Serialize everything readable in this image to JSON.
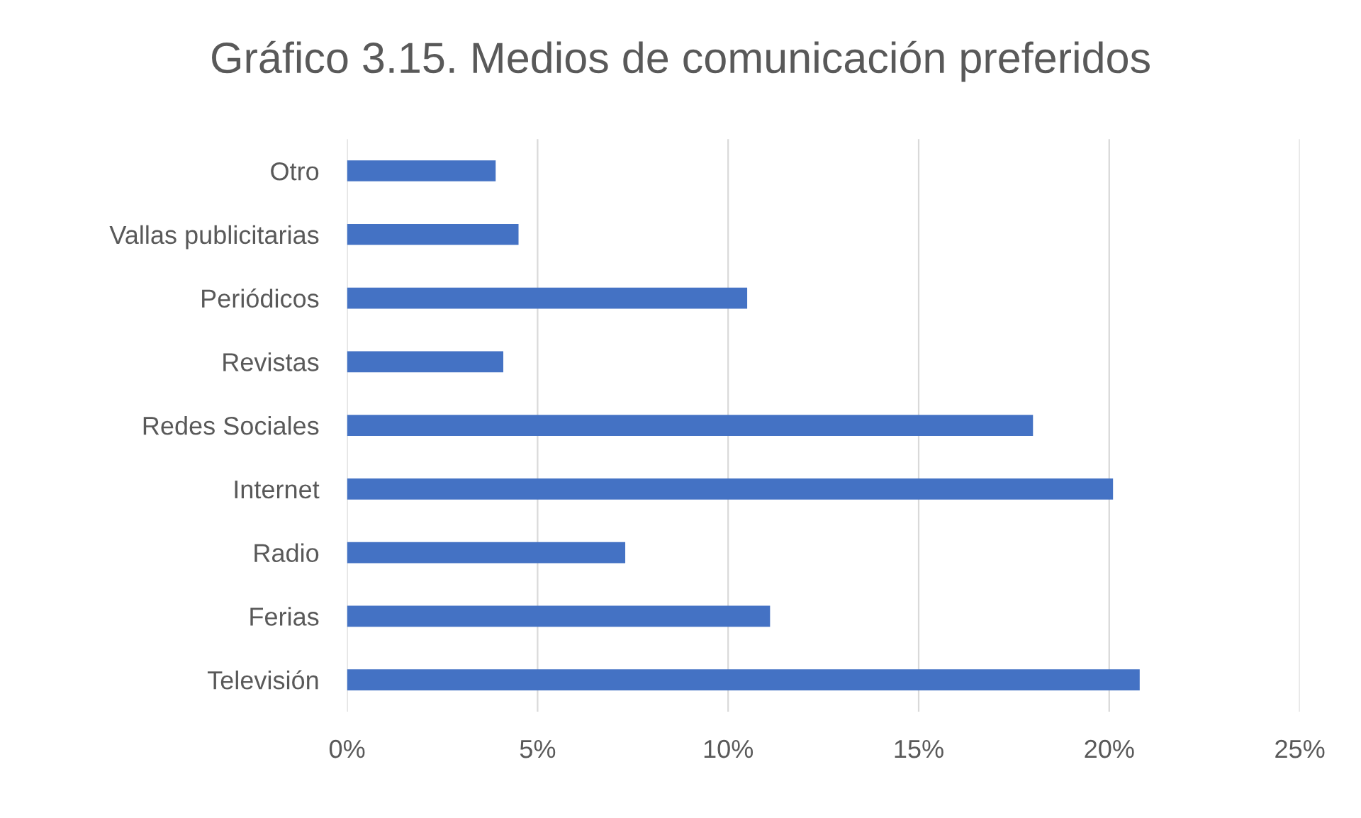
{
  "chart_data": {
    "type": "bar",
    "orientation": "horizontal",
    "title": "Gráfico 3.15. Medios de comunicación preferidos",
    "categories": [
      "Otro",
      "Vallas publicitarias",
      "Periódicos",
      "Revistas",
      "Redes Sociales",
      "Internet",
      "Radio",
      "Ferias",
      "Televisión"
    ],
    "values": [
      3.9,
      4.5,
      10.5,
      4.1,
      18.0,
      20.1,
      7.3,
      11.1,
      20.8
    ],
    "color": "#4472c4",
    "xlim": [
      0,
      25
    ],
    "xticks": [
      {
        "value": 0,
        "label": "0%"
      },
      {
        "value": 5,
        "label": "5%"
      },
      {
        "value": 10,
        "label": "10%"
      },
      {
        "value": 15,
        "label": "15%"
      },
      {
        "value": 20,
        "label": "20%"
      },
      {
        "value": 25,
        "label": "25%"
      }
    ],
    "grid": "x"
  }
}
